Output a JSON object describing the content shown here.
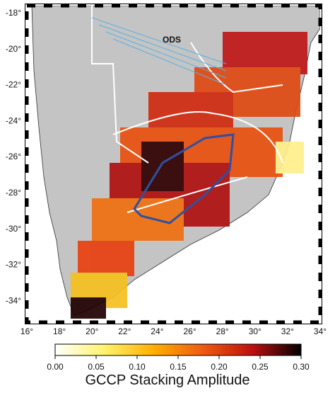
{
  "map": {
    "annotation": "ODS",
    "lon_labels": [
      "16°",
      "18°",
      "20°",
      "22°",
      "24°",
      "26°",
      "28°",
      "30°",
      "32°",
      "34°"
    ],
    "lat_labels": [
      "-18°",
      "-20°",
      "-22°",
      "-24°",
      "-26°",
      "-28°",
      "-30°",
      "-32°",
      "-34°"
    ]
  },
  "colorbar": {
    "label": "GCCP Stacking Amplitude",
    "range": [
      0,
      0.3
    ],
    "colors": [
      "#ffffff",
      "#fff36a",
      "#ffb000",
      "#f05a10",
      "#c01010",
      "#000000"
    ],
    "ticks": [
      {
        "value": 0,
        "label": "0.00"
      },
      {
        "value": 0.05,
        "label": "0.05"
      },
      {
        "value": 0.1,
        "label": "0.10"
      },
      {
        "value": 0.15,
        "label": "0.15"
      },
      {
        "value": 0.2,
        "label": "0.20"
      },
      {
        "value": 0.25,
        "label": "0.25"
      },
      {
        "value": 0.3,
        "label": "0.30"
      }
    ]
  }
}
